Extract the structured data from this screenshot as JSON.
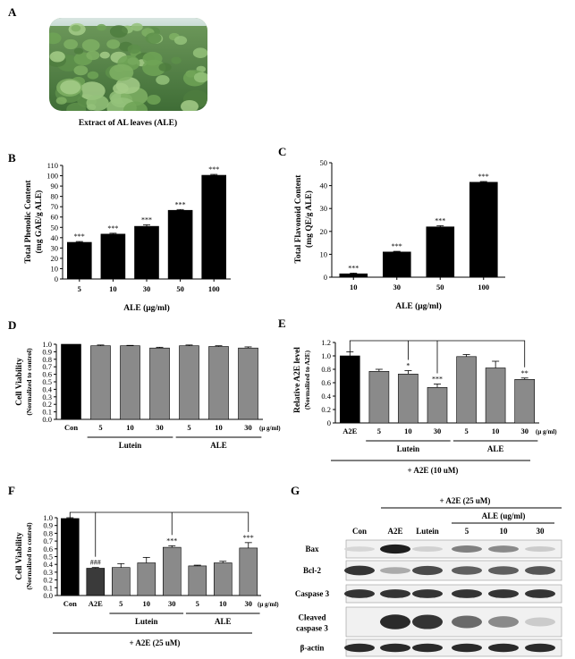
{
  "panel_letters": {
    "A": "A",
    "B": "B",
    "C": "C",
    "D": "D",
    "E": "E",
    "F": "F",
    "G": "G"
  },
  "panelA": {
    "caption": "Extract  of AL leaves (ALE)",
    "photo": "pumpkin-leaf-field-photo"
  },
  "colors": {
    "black_bar": "#000000",
    "gray_bar": "#8a8a8a",
    "dark_bar": "#3a3a3a"
  },
  "chart_data": [
    {
      "id": "B",
      "type": "bar",
      "categories": [
        "5",
        "10",
        "30",
        "50",
        "100"
      ],
      "values": [
        35.5,
        43.5,
        51,
        66.5,
        100.5
      ],
      "errors": [
        0.8,
        0.8,
        1.5,
        0.8,
        0.8
      ],
      "sig": [
        "***",
        "***",
        "***",
        "***",
        "***"
      ],
      "xlabel": "ALE (μg/ml)",
      "ylabel": "Total Phenolic Content",
      "ylabel2": "(mg GAE/g ALE)",
      "ylim": [
        0,
        110
      ],
      "yticks": [
        "0",
        "10",
        "20",
        "30",
        "40",
        "50",
        "60",
        "70",
        "80",
        "90",
        "100",
        "110"
      ],
      "bar_color": "#000000"
    },
    {
      "id": "C",
      "type": "bar",
      "categories": [
        "10",
        "30",
        "50",
        "100"
      ],
      "values": [
        1.5,
        11,
        22,
        41.5
      ],
      "errors": [
        0.3,
        0.3,
        0.5,
        0.3
      ],
      "sig": [
        "***",
        "***",
        "***",
        "***"
      ],
      "xlabel": "ALE (μg/ml)",
      "ylabel": "Total Flavonoid Content",
      "ylabel2": "(mg QE/g ALE)",
      "ylim": [
        0,
        50
      ],
      "yticks": [
        "0",
        "10",
        "20",
        "30",
        "40",
        "50"
      ],
      "bar_color": "#000000"
    },
    {
      "id": "D",
      "type": "bar",
      "categories": [
        "Con",
        "5",
        "10",
        "30",
        "5",
        "10",
        "30"
      ],
      "values": [
        1.0,
        0.98,
        0.98,
        0.95,
        0.98,
        0.97,
        0.95
      ],
      "errors": [
        0,
        0.01,
        0.005,
        0.01,
        0.01,
        0.01,
        0.015
      ],
      "colors": [
        "#000000",
        "#8a8a8a",
        "#8a8a8a",
        "#8a8a8a",
        "#8a8a8a",
        "#8a8a8a",
        "#8a8a8a"
      ],
      "groups": [
        {
          "label": "Lutein",
          "from": 1,
          "to": 3
        },
        {
          "label": "ALE",
          "from": 4,
          "to": 6
        }
      ],
      "unit": "(μ g/ml)",
      "ylabel": "Cell Viability",
      "ylabel2": "(Normalized to control)",
      "ylim": [
        0,
        1.0
      ],
      "yticks": [
        "0.0",
        "0.1",
        "0.2",
        "0.3",
        "0.4",
        "0.5",
        "0.6",
        "0.7",
        "0.8",
        "0.9",
        "1.0"
      ]
    },
    {
      "id": "E",
      "type": "bar",
      "categories": [
        "A2E",
        "5",
        "10",
        "30",
        "5",
        "10",
        "30"
      ],
      "values": [
        1.0,
        0.77,
        0.73,
        0.53,
        0.99,
        0.82,
        0.65
      ],
      "errors": [
        0.06,
        0.03,
        0.05,
        0.05,
        0.03,
        0.1,
        0.02
      ],
      "sig": [
        "",
        "",
        "*",
        "***",
        "",
        "",
        "**"
      ],
      "colors": [
        "#000000",
        "#8a8a8a",
        "#8a8a8a",
        "#8a8a8a",
        "#8a8a8a",
        "#8a8a8a",
        "#8a8a8a"
      ],
      "groups": [
        {
          "label": "Lutein",
          "from": 1,
          "to": 3
        },
        {
          "label": "ALE",
          "from": 4,
          "to": 6
        }
      ],
      "unit": "(μ g/ml)",
      "bottom_label": "+ A2E (10 uM)",
      "ylabel": "Relative A2E level",
      "ylabel2": "(Normalized to A2E)",
      "ylim": [
        0,
        1.2
      ],
      "yticks": [
        "0",
        "0.2",
        "0.4",
        "0.6",
        "0.8",
        "1.0",
        "1.2"
      ]
    },
    {
      "id": "F",
      "type": "bar",
      "categories": [
        "Con",
        "A2E",
        "5",
        "10",
        "30",
        "5",
        "10",
        "30"
      ],
      "values": [
        0.99,
        0.35,
        0.36,
        0.42,
        0.62,
        0.38,
        0.42,
        0.61
      ],
      "errors": [
        0.01,
        0.01,
        0.05,
        0.07,
        0.02,
        0.01,
        0.02,
        0.07
      ],
      "sig": [
        "",
        "###",
        "",
        "",
        "***",
        "",
        "",
        "***"
      ],
      "colors": [
        "#000000",
        "#3a3a3a",
        "#8a8a8a",
        "#8a8a8a",
        "#8a8a8a",
        "#8a8a8a",
        "#8a8a8a",
        "#8a8a8a"
      ],
      "groups": [
        {
          "label": "Lutein",
          "from": 2,
          "to": 4
        },
        {
          "label": "ALE",
          "from": 5,
          "to": 7
        }
      ],
      "unit": "(μ g/ml)",
      "bottom_label": "+ A2E (25 uM)",
      "ylabel": "Cell Viability",
      "ylabel2": "(Normalized to control)",
      "ylim": [
        0,
        1.0
      ],
      "yticks": [
        "0.0",
        "0.1",
        "0.2",
        "0.3",
        "0.4",
        "0.5",
        "0.6",
        "0.7",
        "0.8",
        "0.9",
        "1.0"
      ]
    }
  ],
  "panelG": {
    "top_label": "+ A2E (25 uM)",
    "ale_label": "ALE (ug/ml)",
    "lanes": [
      "Con",
      "A2E",
      "Lutein",
      "5",
      "10",
      "30"
    ],
    "bands": [
      {
        "label": "Bax",
        "intensity": [
          0.1,
          0.95,
          0.12,
          0.5,
          0.45,
          0.15
        ]
      },
      {
        "label": "Bcl-2",
        "intensity": [
          0.85,
          0.3,
          0.75,
          0.65,
          0.65,
          0.7
        ]
      },
      {
        "label": "Caspase 3",
        "intensity": [
          0.85,
          0.85,
          0.85,
          0.85,
          0.85,
          0.85
        ]
      },
      {
        "label": "Cleaved\ncaspase 3",
        "label1": "Cleaved",
        "label2": "caspase 3",
        "intensity": [
          0.0,
          0.9,
          0.85,
          0.6,
          0.45,
          0.15
        ]
      },
      {
        "label": "β-actin",
        "intensity": [
          0.9,
          0.9,
          0.9,
          0.9,
          0.9,
          0.9
        ]
      }
    ]
  }
}
